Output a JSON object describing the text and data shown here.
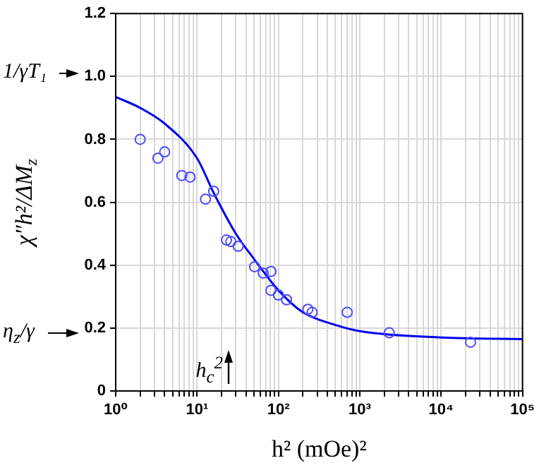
{
  "chart_data": {
    "type": "scatter",
    "xlabel": "h² (mOe)²",
    "ylabel": "χ″h²/ΔM$_{z}$",
    "log": "x",
    "grid": true,
    "legend": false,
    "marker": "circle",
    "xlim": [
      1,
      100000
    ],
    "ylim": [
      0,
      1.2
    ],
    "xticks": [
      {
        "value": 1,
        "label": "10⁰"
      },
      {
        "value": 2,
        "label": null
      },
      {
        "value": 3,
        "label": null
      },
      {
        "value": 4,
        "label": null
      },
      {
        "value": 5,
        "label": null
      },
      {
        "value": 6,
        "label": null
      },
      {
        "value": 7,
        "label": null
      },
      {
        "value": 8,
        "label": null
      },
      {
        "value": 9,
        "label": null
      },
      {
        "value": 10,
        "label": "10¹"
      },
      {
        "value": 20,
        "label": null
      },
      {
        "value": 30,
        "label": null
      },
      {
        "value": 40,
        "label": null
      },
      {
        "value": 50,
        "label": null
      },
      {
        "value": 60,
        "label": null
      },
      {
        "value": 70,
        "label": null
      },
      {
        "value": 80,
        "label": null
      },
      {
        "value": 90,
        "label": null
      },
      {
        "value": 100,
        "label": "10²"
      },
      {
        "value": 200,
        "label": null
      },
      {
        "value": 300,
        "label": null
      },
      {
        "value": 400,
        "label": null
      },
      {
        "value": 500,
        "label": null
      },
      {
        "value": 600,
        "label": null
      },
      {
        "value": 700,
        "label": null
      },
      {
        "value": 800,
        "label": null
      },
      {
        "value": 900,
        "label": null
      },
      {
        "value": 1000,
        "label": "10³"
      },
      {
        "value": 2000,
        "label": null
      },
      {
        "value": 3000,
        "label": null
      },
      {
        "value": 4000,
        "label": null
      },
      {
        "value": 5000,
        "label": null
      },
      {
        "value": 6000,
        "label": null
      },
      {
        "value": 7000,
        "label": null
      },
      {
        "value": 8000,
        "label": null
      },
      {
        "value": 9000,
        "label": null
      },
      {
        "value": 10000,
        "label": "10⁴"
      },
      {
        "value": 20000,
        "label": null
      },
      {
        "value": 30000,
        "label": null
      },
      {
        "value": 40000,
        "label": null
      },
      {
        "value": 50000,
        "label": null
      },
      {
        "value": 60000,
        "label": null
      },
      {
        "value": 70000,
        "label": null
      },
      {
        "value": 80000,
        "label": null
      },
      {
        "value": 90000,
        "label": null
      },
      {
        "value": 100000,
        "label": "10⁵"
      }
    ],
    "yticks": [
      0,
      0.2,
      0.4,
      0.6,
      0.8,
      {
        "value": 1,
        "label": "1.0"
      },
      {
        "value": 1.2,
        "label": "1.2"
      }
    ],
    "series": [
      {
        "color": "#4d4dff",
        "x": [
          2,
          3.3,
          4,
          6.5,
          8.2,
          12.7,
          16,
          23,
          26,
          32,
          51,
          65,
          81,
          81,
          100,
          126,
          230,
          260,
          700,
          2300,
          23000
        ],
        "values": [
          0.8,
          0.74,
          0.76,
          0.685,
          0.68,
          0.61,
          0.635,
          0.48,
          0.475,
          0.46,
          0.395,
          0.375,
          0.38,
          0.32,
          0.305,
          0.29,
          0.26,
          0.25,
          0.25,
          0.185,
          0.155
        ]
      },
      {
        "type": "line",
        "color": "#0000ee",
        "marker": "none",
        "x": [
          1,
          2,
          4,
          10,
          16,
          30,
          50,
          100,
          200,
          500,
          1000,
          10000,
          100000
        ],
        "values": [
          0.935,
          0.9,
          0.85,
          0.74,
          0.63,
          0.5,
          0.42,
          0.32,
          0.25,
          0.21,
          0.19,
          0.17,
          0.165
        ]
      }
    ],
    "annotations": [
      "1/γT₁",
      "η$_{z}$/γ",
      "h$_{c}$$^{2}$"
    ]
  }
}
